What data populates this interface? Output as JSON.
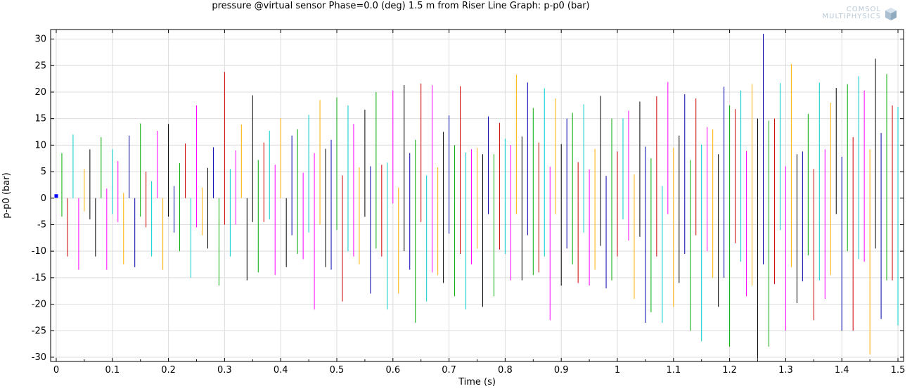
{
  "logo": {
    "line1": "COMSOL",
    "line2": "MULTIPHYSICS"
  },
  "chart_data": {
    "type": "line",
    "title": "pressure @virtual sensor Phase=0.0 (deg) 1.5 m from Riser   Line Graph: p-p0 (bar)",
    "xlabel": "Time (s)",
    "ylabel": "p-p0 (bar)",
    "xlim": [
      -0.01,
      1.51
    ],
    "ylim": [
      -30.8,
      31.8
    ],
    "grid": true,
    "x_ticks": [
      0,
      0.1,
      0.2,
      0.3,
      0.4,
      0.5,
      0.6,
      0.7,
      0.8,
      0.9,
      1,
      1.1,
      1.2,
      1.3,
      1.4,
      1.5
    ],
    "x_tick_labels": [
      "0",
      "0.1",
      "0.2",
      "0.3",
      "0.4",
      "0.5",
      "0.6",
      "0.7",
      "0.8",
      "0.9",
      "1",
      "1.1",
      "1.2",
      "1.3",
      "1.4",
      "1.5"
    ],
    "y_ticks": [
      -30,
      -25,
      -20,
      -15,
      -10,
      -5,
      0,
      5,
      10,
      15,
      20,
      25,
      30
    ],
    "y_tick_labels": [
      "-30",
      "-25",
      "-20",
      "-15",
      "-10",
      "-5",
      "0",
      "5",
      "10",
      "15",
      "20",
      "25",
      "30"
    ],
    "initial_point": {
      "x": 0,
      "y": 0.4,
      "color": "#0000ff"
    },
    "series_note_colors": [
      "#ff0000",
      "#ff00ff",
      "#00cccc",
      "#ffb000",
      "#000000",
      "#00aa00",
      "#0000aa"
    ],
    "series": [
      {
        "x": 0.01,
        "ymin": -3.5,
        "ymax": 8.5,
        "color": "#00aa00"
      },
      {
        "x": 0.02,
        "ymin": -11,
        "ymax": 0,
        "color": "#cc0000"
      },
      {
        "x": 0.03,
        "ymin": 0,
        "ymax": 12,
        "color": "#00cccc"
      },
      {
        "x": 0.04,
        "ymin": -13.5,
        "ymax": 0,
        "color": "#ff00ff"
      },
      {
        "x": 0.05,
        "ymin": -2.5,
        "ymax": 5.5,
        "color": "#ffb000"
      },
      {
        "x": 0.06,
        "ymin": -4,
        "ymax": 9.2,
        "color": "#000000"
      },
      {
        "x": 0.07,
        "ymin": -11,
        "ymax": 0,
        "color": "#000000"
      },
      {
        "x": 0.08,
        "ymin": 0,
        "ymax": 11.5,
        "color": "#00aa00"
      },
      {
        "x": 0.09,
        "ymin": -13.5,
        "ymax": 1.8,
        "color": "#ff00ff"
      },
      {
        "x": 0.1,
        "ymin": -3,
        "ymax": 9.2,
        "color": "#00cccc"
      },
      {
        "x": 0.11,
        "ymin": -4.5,
        "ymax": 7,
        "color": "#ff00ff"
      },
      {
        "x": 0.12,
        "ymin": -12.5,
        "ymax": 1,
        "color": "#ffb000"
      },
      {
        "x": 0.13,
        "ymin": 0,
        "ymax": 11.8,
        "color": "#0000aa"
      },
      {
        "x": 0.14,
        "ymin": -13,
        "ymax": 0,
        "color": "#0000aa"
      },
      {
        "x": 0.15,
        "ymin": -3.5,
        "ymax": 14.1,
        "color": "#00aa00"
      },
      {
        "x": 0.16,
        "ymin": -5.5,
        "ymax": 5,
        "color": "#cc0000"
      },
      {
        "x": 0.17,
        "ymin": -11,
        "ymax": 3.2,
        "color": "#00cccc"
      },
      {
        "x": 0.18,
        "ymin": 0,
        "ymax": 12.7,
        "color": "#ff00ff"
      },
      {
        "x": 0.19,
        "ymin": -13.5,
        "ymax": 0,
        "color": "#ffb000"
      },
      {
        "x": 0.2,
        "ymin": -3.5,
        "ymax": 14,
        "color": "#000000"
      },
      {
        "x": 0.21,
        "ymin": -6.5,
        "ymax": 2.3,
        "color": "#0000aa"
      },
      {
        "x": 0.22,
        "ymin": -10,
        "ymax": 6.6,
        "color": "#00aa00"
      },
      {
        "x": 0.23,
        "ymin": 0,
        "ymax": 10.3,
        "color": "#cc0000"
      },
      {
        "x": 0.24,
        "ymin": -15,
        "ymax": 0,
        "color": "#00cccc"
      },
      {
        "x": 0.25,
        "ymin": -5.5,
        "ymax": 17.5,
        "color": "#ff00ff"
      },
      {
        "x": 0.26,
        "ymin": -7,
        "ymax": 2,
        "color": "#ffb000"
      },
      {
        "x": 0.27,
        "ymin": -9.5,
        "ymax": 5.7,
        "color": "#000000"
      },
      {
        "x": 0.28,
        "ymin": 0,
        "ymax": 9.6,
        "color": "#0000aa"
      },
      {
        "x": 0.29,
        "ymin": -16.5,
        "ymax": 0,
        "color": "#00aa00"
      },
      {
        "x": 0.3,
        "ymin": -5,
        "ymax": 23.8,
        "color": "#cc0000"
      },
      {
        "x": 0.31,
        "ymin": -11,
        "ymax": 5.5,
        "color": "#00cccc"
      },
      {
        "x": 0.32,
        "ymin": -5,
        "ymax": 9,
        "color": "#ff00ff"
      },
      {
        "x": 0.33,
        "ymin": 0,
        "ymax": 13.9,
        "color": "#ffb000"
      },
      {
        "x": 0.34,
        "ymin": -15.5,
        "ymax": 0,
        "color": "#000000"
      },
      {
        "x": 0.35,
        "ymin": -4.5,
        "ymax": 19.4,
        "color": "#000000"
      },
      {
        "x": 0.36,
        "ymin": -14,
        "ymax": 7.2,
        "color": "#00aa00"
      },
      {
        "x": 0.37,
        "ymin": -4.5,
        "ymax": 10.5,
        "color": "#cc0000"
      },
      {
        "x": 0.38,
        "ymin": -4,
        "ymax": 12.7,
        "color": "#00cccc"
      },
      {
        "x": 0.39,
        "ymin": -14.5,
        "ymax": 6.3,
        "color": "#ff00ff"
      },
      {
        "x": 0.4,
        "ymin": 0,
        "ymax": 15.1,
        "color": "#ffb000"
      },
      {
        "x": 0.41,
        "ymin": -13,
        "ymax": 0,
        "color": "#000000"
      },
      {
        "x": 0.42,
        "ymin": -7,
        "ymax": 11.8,
        "color": "#0000aa"
      },
      {
        "x": 0.43,
        "ymin": -10.5,
        "ymax": 13,
        "color": "#00aa00"
      },
      {
        "x": 0.44,
        "ymin": -11.5,
        "ymax": 4.8,
        "color": "#ff00ff"
      },
      {
        "x": 0.45,
        "ymin": -6.5,
        "ymax": 15.7,
        "color": "#00cccc"
      },
      {
        "x": 0.46,
        "ymin": -21,
        "ymax": 8.5,
        "color": "#ff00ff"
      },
      {
        "x": 0.47,
        "ymin": -5,
        "ymax": 18.5,
        "color": "#ffb000"
      },
      {
        "x": 0.48,
        "ymin": -13,
        "ymax": 9.3,
        "color": "#000000"
      },
      {
        "x": 0.49,
        "ymin": -13.5,
        "ymax": 11,
        "color": "#0000aa"
      },
      {
        "x": 0.5,
        "ymin": -6,
        "ymax": 19,
        "color": "#00aa00"
      },
      {
        "x": 0.51,
        "ymin": -19.5,
        "ymax": 4.3,
        "color": "#cc0000"
      },
      {
        "x": 0.52,
        "ymin": -10,
        "ymax": 17.5,
        "color": "#00cccc"
      },
      {
        "x": 0.53,
        "ymin": -11,
        "ymax": 14,
        "color": "#ff00ff"
      },
      {
        "x": 0.54,
        "ymin": -12.5,
        "ymax": 5.8,
        "color": "#ffb000"
      },
      {
        "x": 0.55,
        "ymin": -3.5,
        "ymax": 16.7,
        "color": "#000000"
      },
      {
        "x": 0.56,
        "ymin": -18,
        "ymax": 6,
        "color": "#0000aa"
      },
      {
        "x": 0.57,
        "ymin": -9.5,
        "ymax": 20,
        "color": "#00aa00"
      },
      {
        "x": 0.58,
        "ymin": -11,
        "ymax": 6.3,
        "color": "#cc0000"
      },
      {
        "x": 0.59,
        "ymin": -21,
        "ymax": 6.7,
        "color": "#00cccc"
      },
      {
        "x": 0.6,
        "ymin": -1,
        "ymax": 20.3,
        "color": "#ff00ff"
      },
      {
        "x": 0.61,
        "ymin": -18,
        "ymax": 2,
        "color": "#ffb000"
      },
      {
        "x": 0.62,
        "ymin": -10,
        "ymax": 21.3,
        "color": "#000000"
      },
      {
        "x": 0.63,
        "ymin": -13.5,
        "ymax": 8.5,
        "color": "#0000aa"
      },
      {
        "x": 0.64,
        "ymin": -23.5,
        "ymax": 11,
        "color": "#00aa00"
      },
      {
        "x": 0.65,
        "ymin": -4.5,
        "ymax": 21.6,
        "color": "#cc0000"
      },
      {
        "x": 0.66,
        "ymin": -19.5,
        "ymax": 4.3,
        "color": "#00cccc"
      },
      {
        "x": 0.67,
        "ymin": -14,
        "ymax": 21.3,
        "color": "#ff00ff"
      },
      {
        "x": 0.68,
        "ymin": -14.5,
        "ymax": 5.8,
        "color": "#ffb000"
      },
      {
        "x": 0.69,
        "ymin": -16,
        "ymax": 12.5,
        "color": "#000000"
      },
      {
        "x": 0.7,
        "ymin": -6.7,
        "ymax": 15.6,
        "color": "#0000aa"
      },
      {
        "x": 0.71,
        "ymin": -18.5,
        "ymax": 10,
        "color": "#00aa00"
      },
      {
        "x": 0.72,
        "ymin": -10.5,
        "ymax": 21.1,
        "color": "#cc0000"
      },
      {
        "x": 0.73,
        "ymin": -21,
        "ymax": 8.6,
        "color": "#00cccc"
      },
      {
        "x": 0.74,
        "ymin": -12.5,
        "ymax": 9.2,
        "color": "#ff00ff"
      },
      {
        "x": 0.75,
        "ymin": -9.5,
        "ymax": 9.5,
        "color": "#ffb000"
      },
      {
        "x": 0.76,
        "ymin": -20.5,
        "ymax": 8.3,
        "color": "#000000"
      },
      {
        "x": 0.77,
        "ymin": -3,
        "ymax": 15.4,
        "color": "#0000aa"
      },
      {
        "x": 0.78,
        "ymin": -18.5,
        "ymax": 8.3,
        "color": "#00aa00"
      },
      {
        "x": 0.79,
        "ymin": -9.7,
        "ymax": 14.2,
        "color": "#cc0000"
      },
      {
        "x": 0.8,
        "ymin": -10.5,
        "ymax": 11.2,
        "color": "#00cccc"
      },
      {
        "x": 0.81,
        "ymin": -15.5,
        "ymax": 10,
        "color": "#ff00ff"
      },
      {
        "x": 0.82,
        "ymin": -3,
        "ymax": 23.3,
        "color": "#ffb000"
      },
      {
        "x": 0.83,
        "ymin": -15.5,
        "ymax": 11.6,
        "color": "#000000"
      },
      {
        "x": 0.84,
        "ymin": -7,
        "ymax": 21.8,
        "color": "#0000aa"
      },
      {
        "x": 0.85,
        "ymin": -14.5,
        "ymax": 17,
        "color": "#00aa00"
      },
      {
        "x": 0.86,
        "ymin": -14,
        "ymax": 10.5,
        "color": "#cc0000"
      },
      {
        "x": 0.87,
        "ymin": -11,
        "ymax": 20.7,
        "color": "#00cccc"
      },
      {
        "x": 0.88,
        "ymin": -23,
        "ymax": 5.9,
        "color": "#ff00ff"
      },
      {
        "x": 0.89,
        "ymin": -3,
        "ymax": 18.8,
        "color": "#ffb000"
      },
      {
        "x": 0.9,
        "ymin": -16.5,
        "ymax": 10.2,
        "color": "#000000"
      },
      {
        "x": 0.91,
        "ymin": -9.5,
        "ymax": 15,
        "color": "#0000aa"
      },
      {
        "x": 0.92,
        "ymin": -12.5,
        "ymax": 16.1,
        "color": "#00aa00"
      },
      {
        "x": 0.93,
        "ymin": -16,
        "ymax": 6.8,
        "color": "#cc0000"
      },
      {
        "x": 0.94,
        "ymin": -6.5,
        "ymax": 17.7,
        "color": "#00cccc"
      },
      {
        "x": 0.95,
        "ymin": -16.5,
        "ymax": 5.4,
        "color": "#ff00ff"
      },
      {
        "x": 0.96,
        "ymin": -13.5,
        "ymax": 9.3,
        "color": "#ffb000"
      },
      {
        "x": 0.97,
        "ymin": -9,
        "ymax": 19.3,
        "color": "#000000"
      },
      {
        "x": 0.98,
        "ymin": -17,
        "ymax": 4.2,
        "color": "#0000aa"
      },
      {
        "x": 0.99,
        "ymin": -15.5,
        "ymax": 15,
        "color": "#00aa00"
      },
      {
        "x": 1.0,
        "ymin": -11,
        "ymax": 8.8,
        "color": "#cc0000"
      },
      {
        "x": 1.01,
        "ymin": -4,
        "ymax": 15,
        "color": "#00cccc"
      },
      {
        "x": 1.02,
        "ymin": -8,
        "ymax": 16.5,
        "color": "#ff00ff"
      },
      {
        "x": 1.03,
        "ymin": -19,
        "ymax": 4.5,
        "color": "#ffb000"
      },
      {
        "x": 1.04,
        "ymin": -7.3,
        "ymax": 18.2,
        "color": "#000000"
      },
      {
        "x": 1.05,
        "ymin": -23.5,
        "ymax": 9.7,
        "color": "#0000aa"
      },
      {
        "x": 1.06,
        "ymin": -21.5,
        "ymax": 7.5,
        "color": "#00aa00"
      },
      {
        "x": 1.07,
        "ymin": -11,
        "ymax": 19.2,
        "color": "#cc0000"
      },
      {
        "x": 1.08,
        "ymin": -23.5,
        "ymax": 2.3,
        "color": "#00cccc"
      },
      {
        "x": 1.09,
        "ymin": -3,
        "ymax": 21.9,
        "color": "#ff00ff"
      },
      {
        "x": 1.1,
        "ymin": -20.5,
        "ymax": 9.5,
        "color": "#ffb000"
      },
      {
        "x": 1.11,
        "ymin": -16,
        "ymax": 11.8,
        "color": "#000000"
      },
      {
        "x": 1.12,
        "ymin": -10.5,
        "ymax": 19.6,
        "color": "#0000aa"
      },
      {
        "x": 1.13,
        "ymin": -25,
        "ymax": 7.2,
        "color": "#00aa00"
      },
      {
        "x": 1.14,
        "ymin": -7,
        "ymax": 18.8,
        "color": "#cc0000"
      },
      {
        "x": 1.15,
        "ymin": -27,
        "ymax": 10.1,
        "color": "#00cccc"
      },
      {
        "x": 1.16,
        "ymin": -10,
        "ymax": 13.4,
        "color": "#ff00ff"
      },
      {
        "x": 1.17,
        "ymin": -15,
        "ymax": 13,
        "color": "#ffb000"
      },
      {
        "x": 1.18,
        "ymin": -20.5,
        "ymax": 8.3,
        "color": "#000000"
      },
      {
        "x": 1.19,
        "ymin": -15,
        "ymax": 21,
        "color": "#0000aa"
      },
      {
        "x": 1.2,
        "ymin": -28,
        "ymax": 17.5,
        "color": "#00aa00"
      },
      {
        "x": 1.21,
        "ymin": -8.5,
        "ymax": 16.8,
        "color": "#cc0000"
      },
      {
        "x": 1.22,
        "ymin": -12,
        "ymax": 20.3,
        "color": "#00cccc"
      },
      {
        "x": 1.23,
        "ymin": -18.5,
        "ymax": 8.9,
        "color": "#ff00ff"
      },
      {
        "x": 1.24,
        "ymin": -16.5,
        "ymax": 21.5,
        "color": "#ffb000"
      },
      {
        "x": 1.25,
        "ymin": -30.3,
        "ymax": 15,
        "color": "#000000"
      },
      {
        "x": 1.26,
        "ymin": -12.5,
        "ymax": 31,
        "color": "#0000aa"
      },
      {
        "x": 1.27,
        "ymin": -28,
        "ymax": 14.6,
        "color": "#00aa00"
      },
      {
        "x": 1.28,
        "ymin": -16.2,
        "ymax": 15,
        "color": "#cc0000"
      },
      {
        "x": 1.29,
        "ymin": -6,
        "ymax": 21.7,
        "color": "#00cccc"
      },
      {
        "x": 1.3,
        "ymin": -25,
        "ymax": 6,
        "color": "#ff00ff"
      },
      {
        "x": 1.31,
        "ymin": -13,
        "ymax": 25.3,
        "color": "#ffb000"
      },
      {
        "x": 1.32,
        "ymin": -19.8,
        "ymax": 8.3,
        "color": "#000000"
      },
      {
        "x": 1.33,
        "ymin": -15.7,
        "ymax": 8.8,
        "color": "#0000aa"
      },
      {
        "x": 1.34,
        "ymin": -10.8,
        "ymax": 15.9,
        "color": "#00aa00"
      },
      {
        "x": 1.35,
        "ymin": -23,
        "ymax": 5.5,
        "color": "#cc0000"
      },
      {
        "x": 1.36,
        "ymin": -15.5,
        "ymax": 21.8,
        "color": "#00cccc"
      },
      {
        "x": 1.37,
        "ymin": -19,
        "ymax": 9.2,
        "color": "#ff00ff"
      },
      {
        "x": 1.38,
        "ymin": -14.5,
        "ymax": 18,
        "color": "#ffb000"
      },
      {
        "x": 1.39,
        "ymin": -3,
        "ymax": 20.8,
        "color": "#000000"
      },
      {
        "x": 1.4,
        "ymin": -25,
        "ymax": 7.8,
        "color": "#0000aa"
      },
      {
        "x": 1.41,
        "ymin": -10,
        "ymax": 21.5,
        "color": "#00aa00"
      },
      {
        "x": 1.42,
        "ymin": -25,
        "ymax": 11.5,
        "color": "#cc0000"
      },
      {
        "x": 1.43,
        "ymin": -11.5,
        "ymax": 23,
        "color": "#00cccc"
      },
      {
        "x": 1.44,
        "ymin": -12,
        "ymax": 20.3,
        "color": "#ff00ff"
      },
      {
        "x": 1.45,
        "ymin": -29.5,
        "ymax": 9.2,
        "color": "#ffb000"
      },
      {
        "x": 1.46,
        "ymin": -9.5,
        "ymax": 26.3,
        "color": "#000000"
      },
      {
        "x": 1.47,
        "ymin": -22.8,
        "ymax": 12.3,
        "color": "#0000aa"
      },
      {
        "x": 1.48,
        "ymin": -15.5,
        "ymax": 23.4,
        "color": "#00aa00"
      },
      {
        "x": 1.49,
        "ymin": -15.5,
        "ymax": 17.5,
        "color": "#cc0000"
      },
      {
        "x": 1.5,
        "ymin": -24,
        "ymax": 17.2,
        "color": "#00cccc"
      }
    ]
  }
}
